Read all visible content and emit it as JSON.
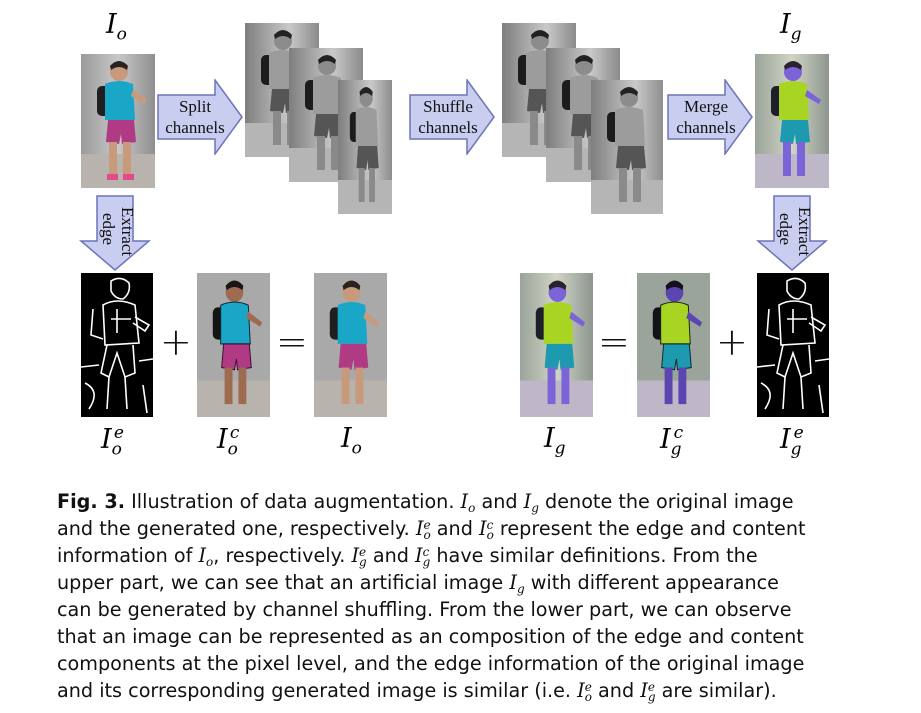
{
  "figure": {
    "labels": {
      "orig_top": "I_o",
      "gen_top": "I_g",
      "split": [
        "Split",
        "channels"
      ],
      "shuffle": [
        "Shuffle",
        "channels"
      ],
      "merge": [
        "Merge",
        "channels"
      ],
      "extract": [
        "Extract",
        "edge"
      ]
    },
    "bottom_labels": {
      "o_e": {
        "base": "I",
        "sub": "o",
        "sup": "e"
      },
      "o_c": {
        "base": "I",
        "sub": "o",
        "sup": "c"
      },
      "o": {
        "base": "I",
        "sub": "o"
      },
      "g": {
        "base": "I",
        "sub": "g"
      },
      "g_c": {
        "base": "I",
        "sub": "g",
        "sup": "c"
      },
      "g_e": {
        "base": "I",
        "sub": "g",
        "sup": "e"
      }
    },
    "operators": {
      "plus": "+",
      "equals": "="
    }
  },
  "caption": {
    "fig_label": "Fig. 3.",
    "lines": [
      "Illustration of data augmentation. I_o and I_g denote the original image",
      "and the generated one, respectively. I_o^e and I_o^c represent the edge and content",
      "information of I_o, respectively. I_g^e and I_g^c have similar definitions. From the",
      "upper part, we can see that an artificial image I_g with different appearance",
      "can be generated by channel shuffling. From the lower part, we can observe",
      "that an image can be represented as an composition of the edge and content",
      "components at the pixel level, and the edge information of the original image",
      "and its corresponding generated image is similar (i.e. I_o^e and I_g^e are similar)."
    ]
  },
  "colors": {
    "arrow_fill": "#c9cdf0",
    "arrow_stroke": "#6d74b8",
    "shirt_orig": "#1aa6c6",
    "shorts_orig": "#b13a84",
    "shirt_gen": "#a8d424",
    "skin_gen": "#7b63d8"
  }
}
